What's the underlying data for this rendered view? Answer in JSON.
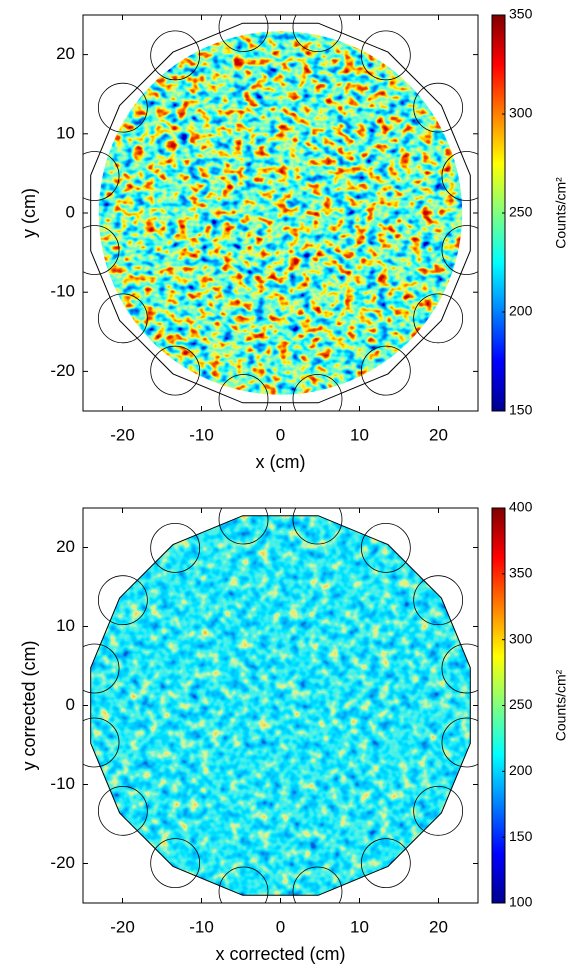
{
  "chart_data": [
    {
      "type": "heatmap",
      "colormap": "jet",
      "xlabel": "x (cm)",
      "ylabel": "y (cm)",
      "xlim": [
        -25,
        25
      ],
      "ylim": [
        -25,
        25
      ],
      "xticks": [
        -20,
        -10,
        0,
        10,
        20
      ],
      "yticks": [
        -20,
        -10,
        0,
        10,
        20
      ],
      "colorbar": {
        "label": "Counts/cm²",
        "clim": [
          150,
          350
        ],
        "ticks": [
          150,
          200,
          250,
          300,
          350
        ]
      }
    },
    {
      "type": "heatmap",
      "colormap": "jet",
      "xlabel": "x corrected (cm)",
      "ylabel": "y corrected (cm)",
      "xlim": [
        -25,
        25
      ],
      "ylim": [
        -25,
        25
      ],
      "xticks": [
        -20,
        -10,
        0,
        10,
        20
      ],
      "yticks": [
        -20,
        -10,
        0,
        10,
        20
      ],
      "colorbar": {
        "label": "Counts/cm²",
        "clim": [
          100,
          400
        ],
        "ticks": [
          100,
          150,
          200,
          250,
          300,
          350,
          400
        ]
      }
    }
  ]
}
